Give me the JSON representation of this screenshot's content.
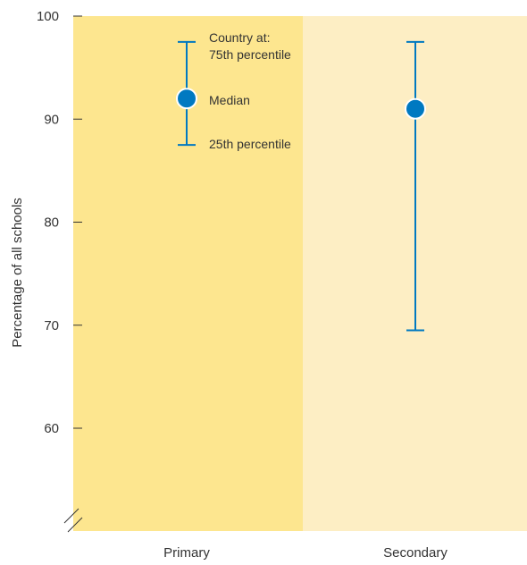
{
  "chart_data": {
    "type": "range",
    "ylabel": "Percentage of all schools",
    "xlabel": "",
    "title": "",
    "ylim": [
      50,
      100
    ],
    "yticks": [
      60,
      70,
      80,
      90,
      100
    ],
    "y_axis_break": true,
    "categories": [
      "Primary",
      "Secondary"
    ],
    "series": [
      {
        "values": [
          {
            "category": "Primary",
            "p25": 87.5,
            "median": 92,
            "p75": 97.5
          },
          {
            "category": "Secondary",
            "p25": 69.5,
            "median": 91,
            "p75": 97.5
          }
        ]
      }
    ],
    "annotations": {
      "country_at": "Country at:",
      "p75": "75th percentile",
      "median": "Median",
      "p25": "25th percentile"
    },
    "colors": {
      "primary_band": "#fde68f",
      "secondary_band": "#fdeec4",
      "marker": "#0079c1",
      "whisker": "#0079c1",
      "axis": "#333333"
    }
  }
}
